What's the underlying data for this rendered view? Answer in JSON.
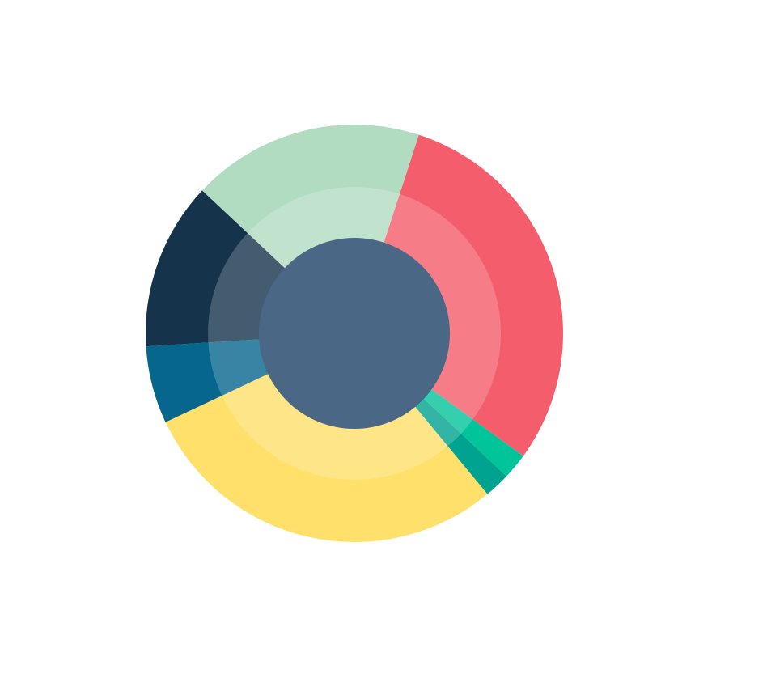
{
  "chart_data": {
    "type": "pie",
    "values": [
      30,
      2,
      2,
      29,
      6,
      13,
      18
    ],
    "colors": [
      "#f45d6b",
      "#00c49a",
      "#00a38f",
      "#fee06b",
      "#07668e",
      "#15344b",
      "#b2dcc2"
    ]
  }
}
